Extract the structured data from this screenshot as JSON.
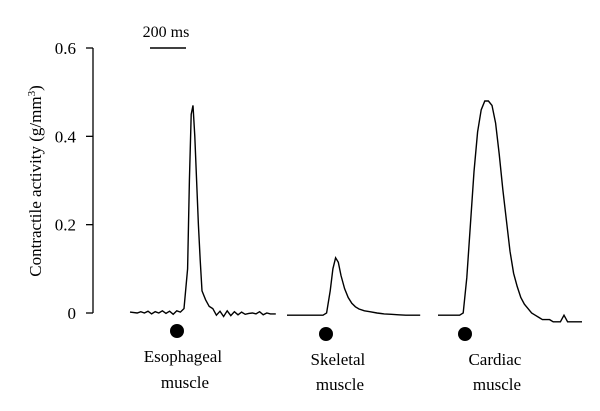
{
  "chart_data": {
    "type": "line",
    "title": "",
    "ylabel": "Contractile activity (g/mm",
    "ylabel_sup": "3",
    "ylabel_close": ")",
    "ylim": [
      0,
      0.6
    ],
    "yticks": [
      {
        "value": 0,
        "label": "0"
      },
      {
        "value": 0.2,
        "label": "0.2"
      },
      {
        "value": 0.4,
        "label": "0.4"
      },
      {
        "value": 0.6,
        "label": "0.6"
      }
    ],
    "scale_bar": {
      "label": "200 ms",
      "duration_ms": 200
    },
    "stimulus_marker": "filled-circle",
    "series": [
      {
        "name": "Esophageal muscle",
        "label_lines": [
          "Esophageal",
          "muscle"
        ],
        "t_ms": [
          0,
          40,
          60,
          80,
          100,
          120,
          140,
          160,
          180,
          200,
          220,
          240,
          260,
          280,
          300,
          320,
          330,
          340,
          350,
          360,
          370,
          380,
          390,
          400,
          420,
          440,
          460,
          480,
          500,
          520,
          540,
          560,
          580,
          600,
          620,
          640,
          660,
          680,
          700,
          720,
          740,
          760,
          780,
          810
        ],
        "values": [
          0.002,
          0.0,
          0.003,
          0.0,
          0.004,
          -0.002,
          0.003,
          0.0,
          0.005,
          -0.001,
          0.004,
          -0.003,
          0.005,
          0.002,
          0.01,
          0.1,
          0.3,
          0.45,
          0.47,
          0.4,
          0.3,
          0.2,
          0.12,
          0.05,
          0.03,
          0.015,
          0.01,
          -0.005,
          0.004,
          -0.008,
          0.005,
          -0.006,
          0.003,
          -0.004,
          0.002,
          -0.003,
          -0.001,
          0.0,
          -0.002,
          0.003,
          -0.004,
          0.0,
          -0.002,
          -0.002
        ]
      },
      {
        "name": "Skeletal muscle",
        "label_lines": [
          "Skeletal",
          "muscle"
        ],
        "t_ms": [
          0,
          200,
          220,
          240,
          255,
          270,
          285,
          300,
          320,
          340,
          360,
          380,
          400,
          430,
          460,
          500,
          540,
          580,
          620,
          660,
          700,
          740
        ],
        "values": [
          -0.005,
          -0.005,
          0.0,
          0.05,
          0.1,
          0.125,
          0.115,
          0.085,
          0.055,
          0.035,
          0.022,
          0.014,
          0.009,
          0.005,
          0.003,
          0.0,
          -0.002,
          -0.003,
          -0.004,
          -0.005,
          -0.005,
          -0.005
        ]
      },
      {
        "name": "Cardiac muscle",
        "label_lines": [
          "Cardiac",
          "muscle"
        ],
        "t_ms": [
          0,
          120,
          140,
          160,
          180,
          200,
          220,
          240,
          260,
          280,
          300,
          320,
          340,
          360,
          380,
          400,
          420,
          440,
          460,
          480,
          500,
          520,
          540,
          560,
          580,
          600,
          620,
          640,
          660,
          680,
          700,
          720,
          740,
          760,
          800
        ],
        "values": [
          -0.005,
          -0.005,
          0.0,
          0.08,
          0.2,
          0.32,
          0.41,
          0.46,
          0.48,
          0.48,
          0.47,
          0.43,
          0.36,
          0.28,
          0.21,
          0.14,
          0.09,
          0.06,
          0.035,
          0.02,
          0.01,
          0.0,
          -0.005,
          -0.01,
          -0.015,
          -0.015,
          -0.015,
          -0.02,
          -0.02,
          -0.02,
          -0.005,
          -0.02,
          -0.02,
          -0.02,
          -0.02
        ]
      }
    ]
  }
}
